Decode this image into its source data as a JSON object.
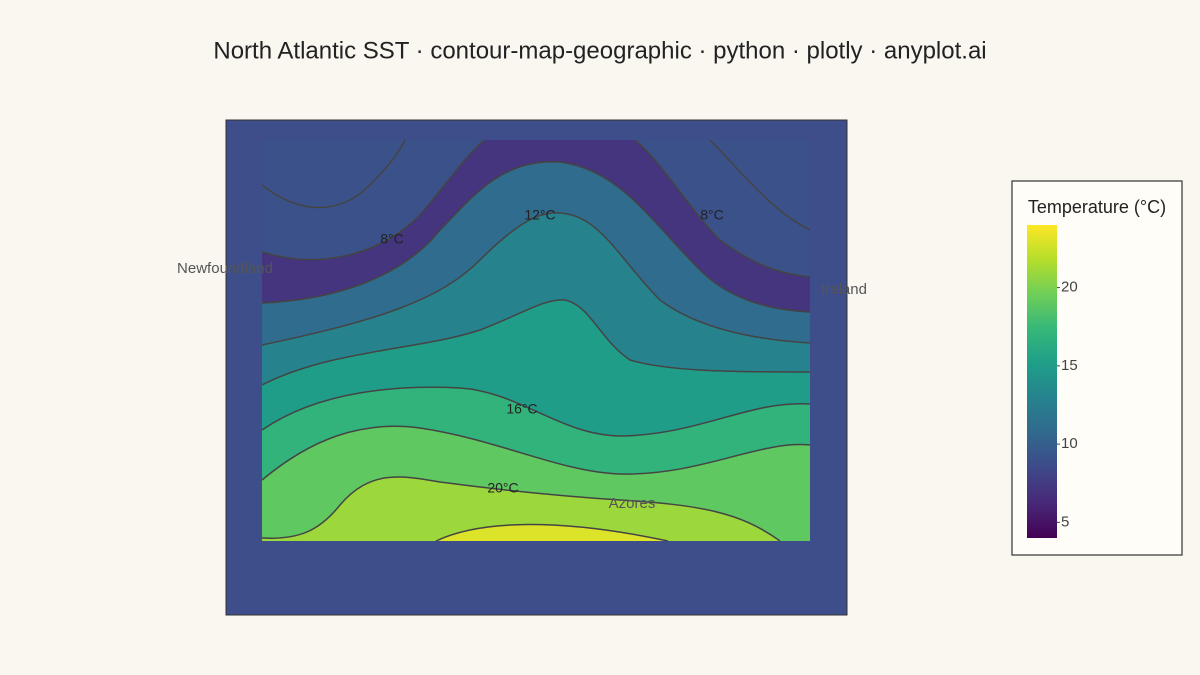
{
  "chart_data": {
    "type": "contour",
    "title": "North Atlantic SST · contour-map-geographic · python · plotly · anyplot.ai",
    "colorscale": "Viridis",
    "colorbar_title": "Temperature (°C)",
    "clim": [
      4,
      24
    ],
    "colorbar_ticks": [
      5,
      10,
      15,
      20
    ],
    "z_bands": [
      9,
      7,
      11,
      13,
      15,
      17,
      19,
      21,
      23
    ],
    "contour_labels": [
      "8°C",
      "12°C",
      "8°C",
      "16°C",
      "20°C"
    ],
    "places": [
      "Newfoundland",
      "Ireland",
      "Azores"
    ]
  }
}
